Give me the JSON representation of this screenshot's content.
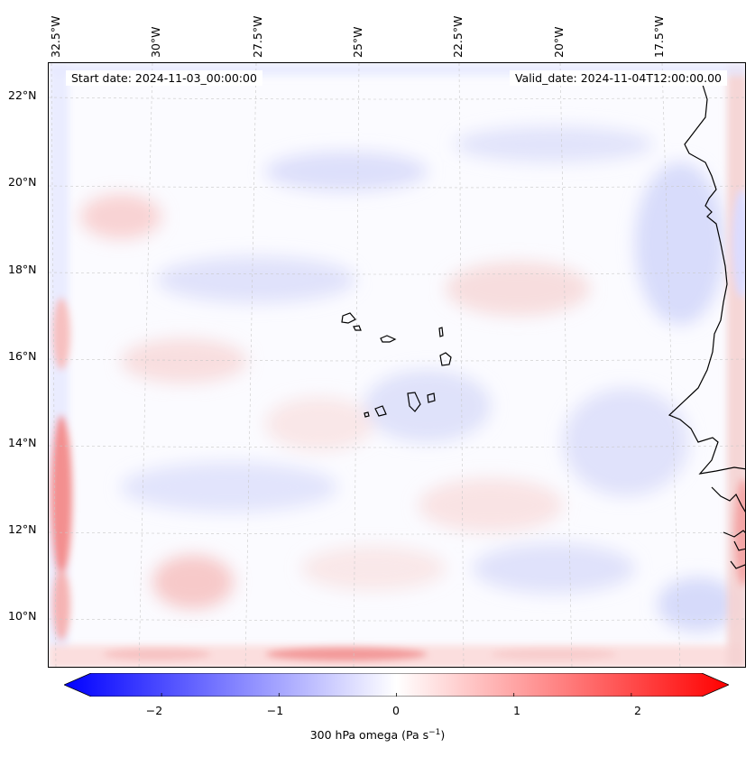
{
  "map": {
    "start_date": "Start date: 2024-11-03_00:00:00",
    "valid_date": "Valid_date: 2024-11-04T12:00:00.00",
    "lon_labels": [
      "32.5°W",
      "30°W",
      "27.5°W",
      "25°W",
      "22.5°W",
      "20°W",
      "17.5°W"
    ],
    "lat_labels": [
      "22°N",
      "20°N",
      "18°N",
      "16°N",
      "14°N",
      "12°N",
      "10°N"
    ],
    "colors": {
      "negative": "#0000ff",
      "neutral": "#ffffff",
      "positive": "#ff0000",
      "coast": "#000000"
    }
  },
  "colorbar": {
    "tick_labels": [
      "−2",
      "−1",
      "0",
      "1",
      "2"
    ],
    "tick_values": [
      -2,
      -1,
      0,
      1,
      2
    ],
    "range": [
      -2.6,
      2.6
    ],
    "label_text": "300 hPa omega (Pa s",
    "label_sup": "−1",
    "label_close": ")"
  }
}
